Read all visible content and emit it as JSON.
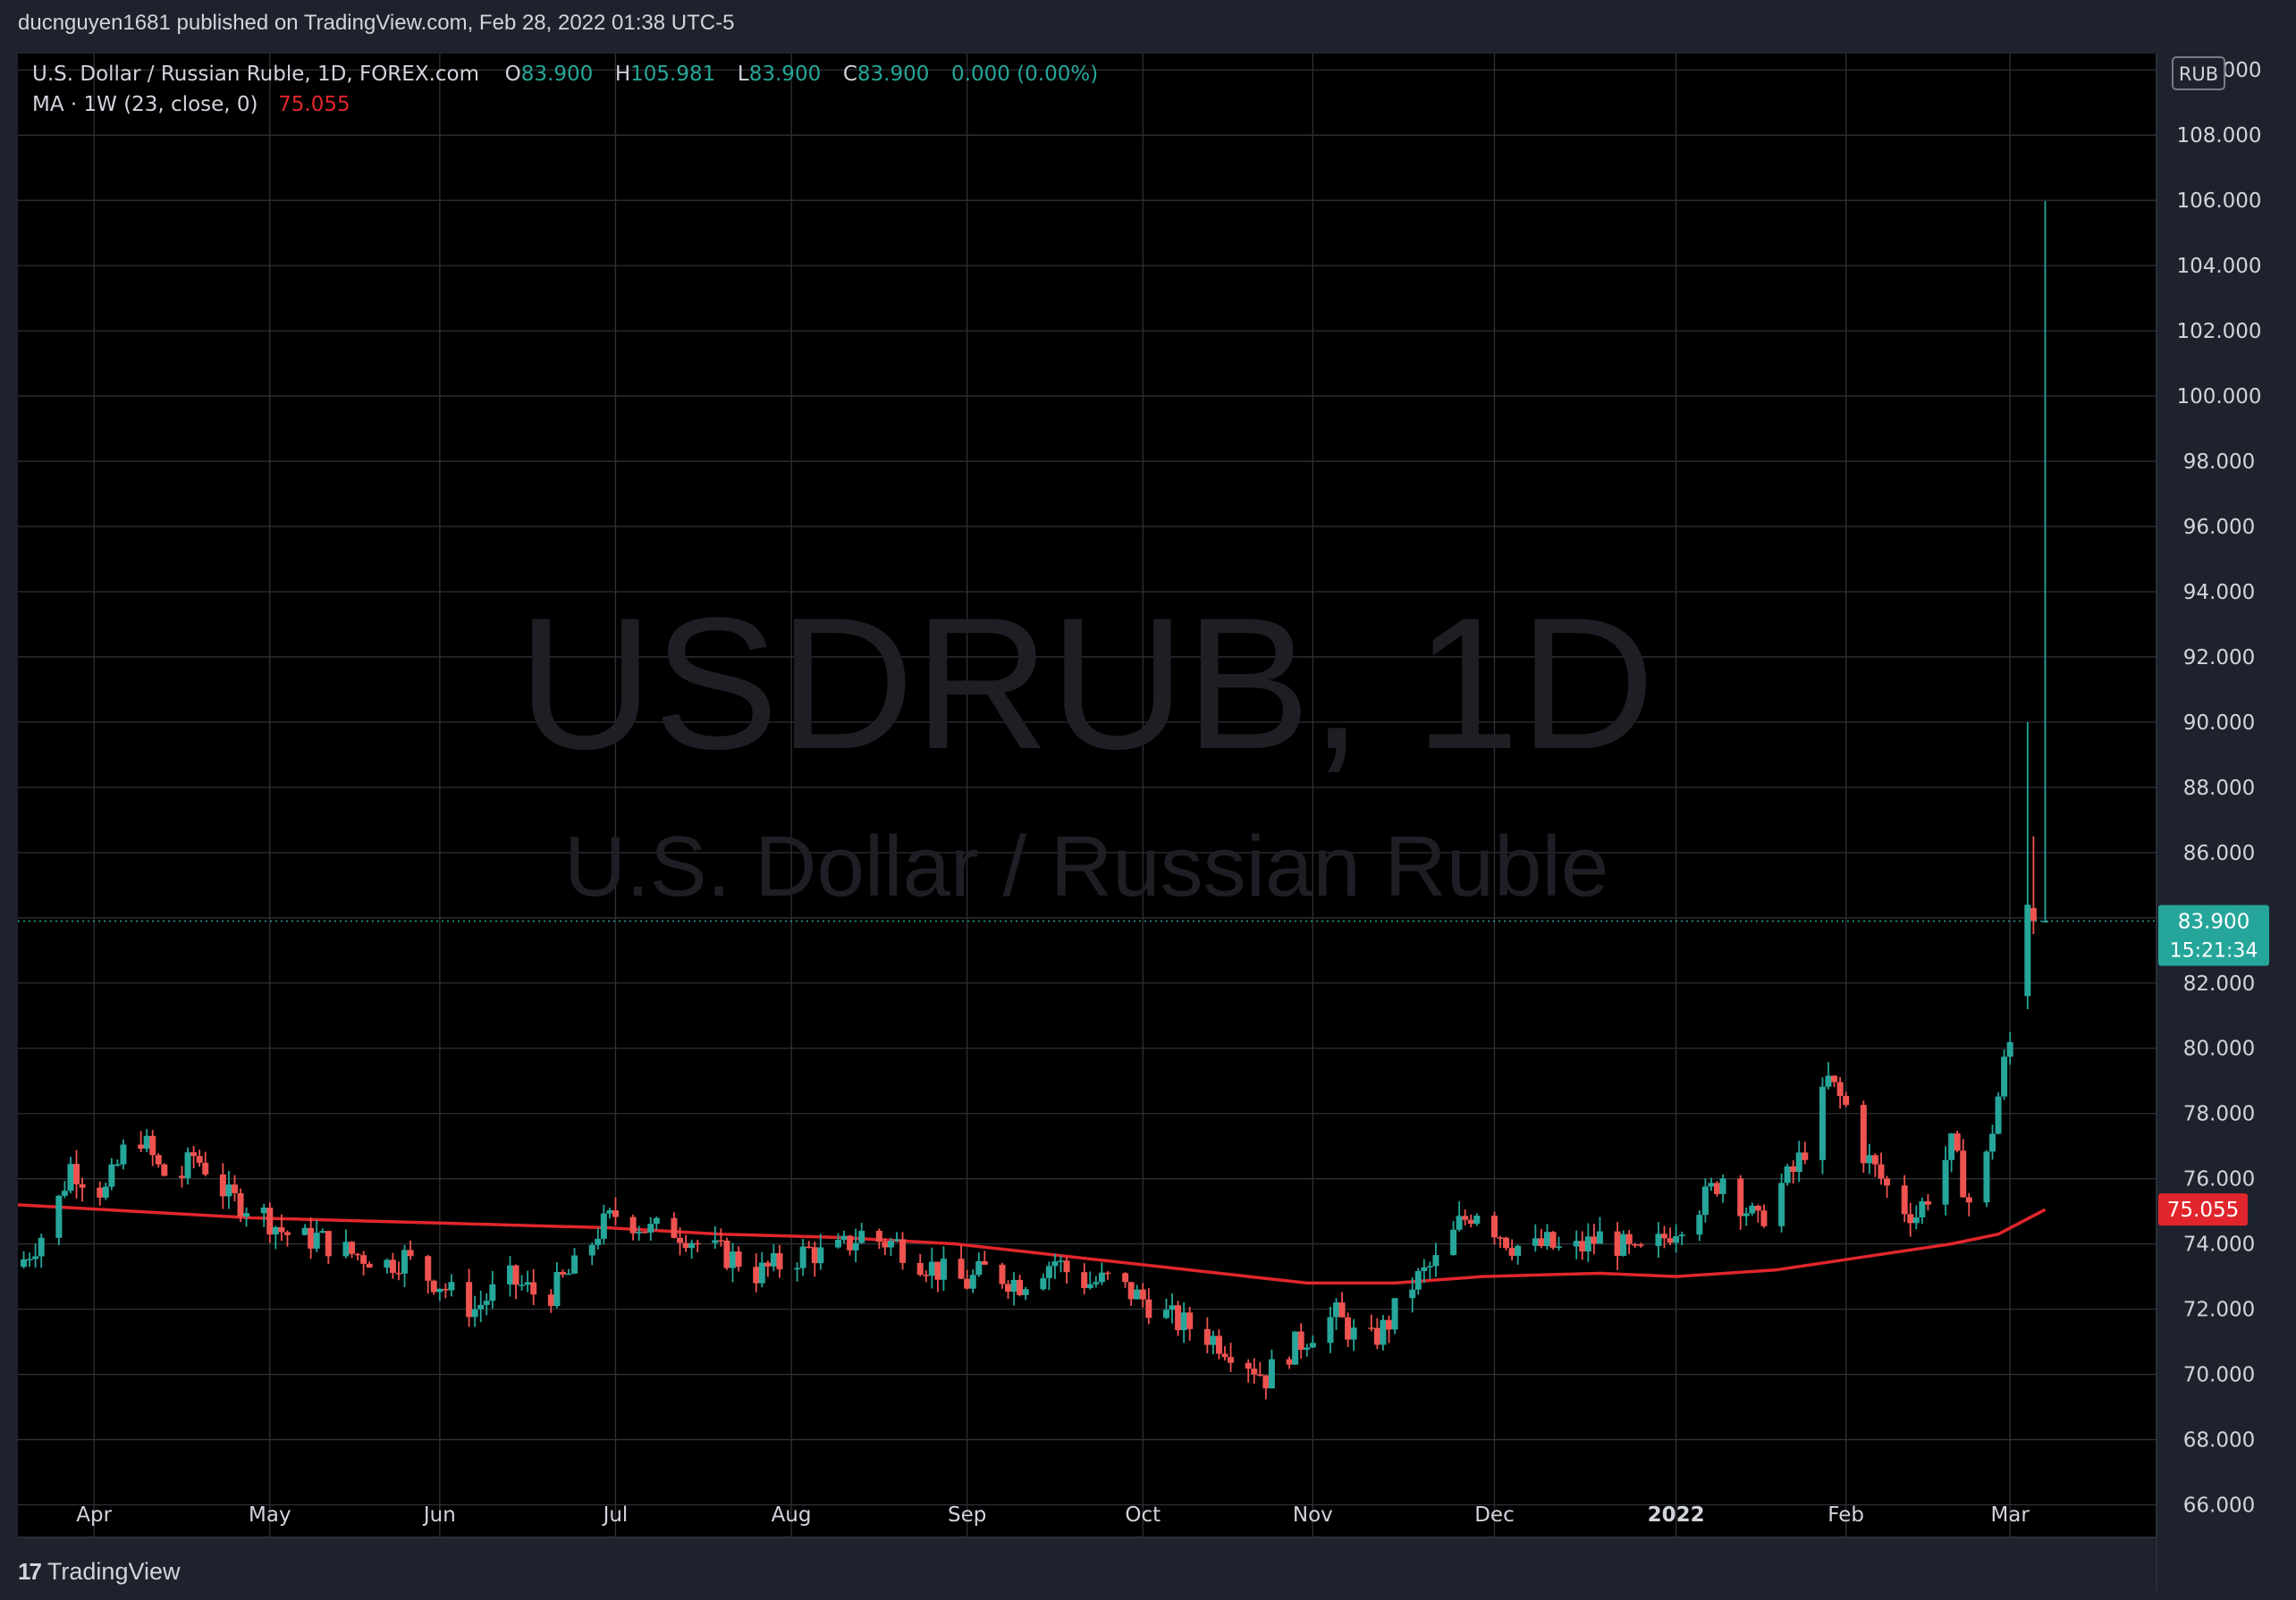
{
  "header": {
    "publish_text": "ducnguyen1681 published on TradingView.com, Feb 28, 2022 01:38 UTC-5"
  },
  "legend": {
    "symbol_line": "U.S. Dollar / Russian Ruble, 1D, FOREX.com",
    "o_label": "O",
    "o_value": "83.900",
    "h_label": "H",
    "h_value": "105.981",
    "l_label": "L",
    "l_value": "83.900",
    "c_label": "C",
    "c_value": "83.900",
    "change": "0.000 (0.00%)",
    "ma_label": "MA · 1W (23, close, 0)",
    "ma_value": "75.055"
  },
  "watermark": {
    "line1": "USDRUB, 1D",
    "line2": "U.S. Dollar / Russian Ruble"
  },
  "price_axis": {
    "currency_badge": "RUB",
    "current_price": "83.900",
    "countdown": "15:21:34",
    "ma_price": "75.055"
  },
  "footer": {
    "brand": "TradingView"
  },
  "colors": {
    "background": "#000000",
    "frame": "#1e222d",
    "grid": "#2f3137",
    "up": "#26a69a",
    "down": "#ef5350",
    "ma": "#e0262c",
    "text": "#d1d4dc"
  },
  "chart_data": {
    "type": "candlestick",
    "ylim": [
      65,
      110.5
    ],
    "y_ticks": [
      66,
      68,
      70,
      72,
      74,
      76,
      78,
      80,
      82,
      84,
      86,
      88,
      90,
      92,
      94,
      96,
      98,
      100,
      102,
      104,
      106,
      108,
      110
    ],
    "y_tick_labels": [
      "66.000",
      "68.000",
      "70.000",
      "72.000",
      "74.000",
      "76.000",
      "78.000",
      "80.000",
      "82.000",
      "84.000",
      "86.000",
      "88.000",
      "90.000",
      "92.000",
      "94.000",
      "96.000",
      "98.000",
      "100.000",
      "102.000",
      "104.000",
      "106.000",
      "108.000",
      "110.000"
    ],
    "x_range_days": [
      0,
      365
    ],
    "x_ticks": [
      {
        "label": "Apr",
        "day": 13,
        "bold": false
      },
      {
        "label": "May",
        "day": 43,
        "bold": false
      },
      {
        "label": "Jun",
        "day": 72,
        "bold": false
      },
      {
        "label": "Jul",
        "day": 102,
        "bold": false
      },
      {
        "label": "Aug",
        "day": 132,
        "bold": false
      },
      {
        "label": "Sep",
        "day": 162,
        "bold": false
      },
      {
        "label": "Oct",
        "day": 192,
        "bold": false
      },
      {
        "label": "Nov",
        "day": 221,
        "bold": false
      },
      {
        "label": "Dec",
        "day": 252,
        "bold": false
      },
      {
        "label": "2022",
        "day": 283,
        "bold": true
      },
      {
        "label": "Feb",
        "day": 312,
        "bold": false
      },
      {
        "label": "Mar",
        "day": 340,
        "bold": false
      }
    ],
    "close_path": [
      [
        0,
        73.3
      ],
      [
        3,
        74.0
      ],
      [
        6,
        74.8
      ],
      [
        9,
        76.4
      ],
      [
        12,
        75.9
      ],
      [
        15,
        75.6
      ],
      [
        18,
        76.8
      ],
      [
        21,
        77.3
      ],
      [
        24,
        76.3
      ],
      [
        27,
        75.8
      ],
      [
        30,
        76.7
      ],
      [
        33,
        76.2
      ],
      [
        36,
        75.4
      ],
      [
        39,
        75.2
      ],
      [
        42,
        74.9
      ],
      [
        45,
        74.4
      ],
      [
        48,
        74.1
      ],
      [
        51,
        74.2
      ],
      [
        54,
        73.9
      ],
      [
        57,
        73.7
      ],
      [
        60,
        73.6
      ],
      [
        63,
        73.4
      ],
      [
        66,
        73.6
      ],
      [
        69,
        73.1
      ],
      [
        72,
        72.8
      ],
      [
        75,
        72.3
      ],
      [
        78,
        72.0
      ],
      [
        81,
        72.5
      ],
      [
        84,
        72.9
      ],
      [
        87,
        72.6
      ],
      [
        90,
        72.3
      ],
      [
        93,
        72.9
      ],
      [
        96,
        73.4
      ],
      [
        99,
        74.4
      ],
      [
        102,
        74.9
      ],
      [
        105,
        74.7
      ],
      [
        108,
        74.4
      ],
      [
        111,
        74.5
      ],
      [
        114,
        74.3
      ],
      [
        117,
        73.9
      ],
      [
        120,
        73.7
      ],
      [
        123,
        73.5
      ],
      [
        126,
        73.1
      ],
      [
        129,
        73.3
      ],
      [
        132,
        73.5
      ],
      [
        135,
        73.8
      ],
      [
        138,
        73.6
      ],
      [
        141,
        73.9
      ],
      [
        144,
        74.3
      ],
      [
        147,
        74.1
      ],
      [
        150,
        74.0
      ],
      [
        153,
        73.6
      ],
      [
        156,
        73.3
      ],
      [
        159,
        73.0
      ],
      [
        162,
        72.8
      ],
      [
        165,
        73.2
      ],
      [
        168,
        73.0
      ],
      [
        171,
        72.8
      ],
      [
        174,
        73.2
      ],
      [
        177,
        73.5
      ],
      [
        180,
        73.0
      ],
      [
        183,
        72.8
      ],
      [
        186,
        72.9
      ],
      [
        189,
        72.6
      ],
      [
        192,
        72.3
      ],
      [
        195,
        71.9
      ],
      [
        198,
        71.6
      ],
      [
        201,
        71.4
      ],
      [
        204,
        71.1
      ],
      [
        207,
        70.8
      ],
      [
        210,
        70.4
      ],
      [
        213,
        69.9
      ],
      [
        216,
        70.6
      ],
      [
        219,
        71.0
      ],
      [
        222,
        71.5
      ],
      [
        225,
        71.8
      ],
      [
        228,
        71.2
      ],
      [
        231,
        71.0
      ],
      [
        234,
        71.6
      ],
      [
        237,
        72.6
      ],
      [
        240,
        73.1
      ],
      [
        243,
        73.6
      ],
      [
        246,
        74.6
      ],
      [
        249,
        75.1
      ],
      [
        252,
        74.5
      ],
      [
        255,
        74.0
      ],
      [
        258,
        73.8
      ],
      [
        261,
        74.0
      ],
      [
        264,
        73.7
      ],
      [
        267,
        73.9
      ],
      [
        270,
        74.2
      ],
      [
        273,
        74.0
      ],
      [
        276,
        73.6
      ],
      [
        279,
        73.8
      ],
      [
        282,
        74.4
      ],
      [
        285,
        74.9
      ],
      [
        288,
        75.4
      ],
      [
        291,
        76.1
      ],
      [
        294,
        75.3
      ],
      [
        297,
        74.6
      ],
      [
        300,
        75.6
      ],
      [
        303,
        76.2
      ],
      [
        306,
        77.3
      ],
      [
        309,
        79.0
      ],
      [
        312,
        78.2
      ],
      [
        315,
        76.8
      ],
      [
        318,
        76.0
      ],
      [
        321,
        75.2
      ],
      [
        324,
        74.9
      ],
      [
        327,
        75.8
      ],
      [
        330,
        77.0
      ],
      [
        333,
        75.3
      ],
      [
        336,
        76.6
      ],
      [
        339,
        79.5
      ],
      [
        341,
        80.8
      ],
      [
        343,
        82.5
      ],
      [
        345,
        83.9
      ]
    ],
    "spike_candles": [
      {
        "day": 343,
        "open": 81.6,
        "high": 90.0,
        "low": 81.2,
        "close": 84.4
      },
      {
        "day": 344,
        "open": 84.3,
        "high": 86.5,
        "low": 83.5,
        "close": 83.9
      },
      {
        "day": 346,
        "open": 83.9,
        "high": 105.981,
        "low": 83.9,
        "close": 83.9
      }
    ],
    "ma_series": {
      "name": "MA · 1W (23, close, 0)",
      "points": [
        [
          0,
          75.2
        ],
        [
          20,
          75.0
        ],
        [
          40,
          74.8
        ],
        [
          60,
          74.7
        ],
        [
          80,
          74.6
        ],
        [
          100,
          74.5
        ],
        [
          120,
          74.3
        ],
        [
          140,
          74.2
        ],
        [
          160,
          74.0
        ],
        [
          180,
          73.6
        ],
        [
          200,
          73.2
        ],
        [
          220,
          72.8
        ],
        [
          235,
          72.8
        ],
        [
          250,
          73.0
        ],
        [
          270,
          73.1
        ],
        [
          283,
          73.0
        ],
        [
          300,
          73.2
        ],
        [
          315,
          73.6
        ],
        [
          330,
          74.0
        ],
        [
          338,
          74.3
        ],
        [
          346,
          75.055
        ]
      ]
    },
    "last_price": 83.9
  }
}
